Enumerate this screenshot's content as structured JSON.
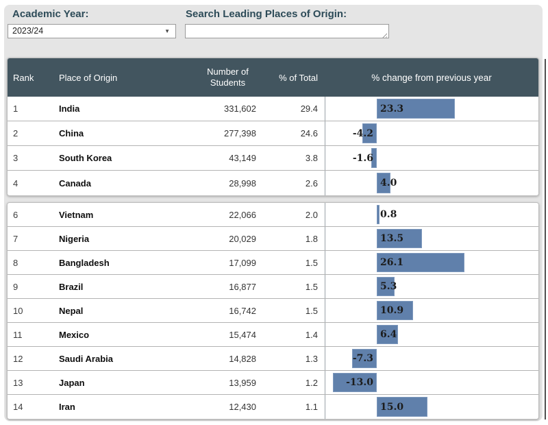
{
  "filters": {
    "academic_year_label": "Academic Year:",
    "academic_year_value": "2023/24",
    "search_label": "Search Leading Places of Origin:",
    "search_value": ""
  },
  "table": {
    "columns": {
      "rank": "Rank",
      "place": "Place of Origin",
      "students": "Number of Students",
      "pct_total": "% of Total",
      "pct_change": "% change from previous year"
    },
    "rows": [
      {
        "rank": "1",
        "place": "India",
        "students": "331,602",
        "pct_total": "29.4",
        "pct_change": 23.3,
        "pct_change_label": "23.3"
      },
      {
        "rank": "2",
        "place": "China",
        "students": "277,398",
        "pct_total": "24.6",
        "pct_change": -4.2,
        "pct_change_label": "-4.2"
      },
      {
        "rank": "3",
        "place": "South Korea",
        "students": "43,149",
        "pct_total": "3.8",
        "pct_change": -1.6,
        "pct_change_label": "-1.6"
      },
      {
        "rank": "4",
        "place": "Canada",
        "students": "28,998",
        "pct_total": "2.6",
        "pct_change": 4.0,
        "pct_change_label": "4.0"
      },
      {
        "rank": "6",
        "place": "Vietnam",
        "students": "22,066",
        "pct_total": "2.0",
        "pct_change": 0.8,
        "pct_change_label": "0.8"
      },
      {
        "rank": "7",
        "place": "Nigeria",
        "students": "20,029",
        "pct_total": "1.8",
        "pct_change": 13.5,
        "pct_change_label": "13.5"
      },
      {
        "rank": "8",
        "place": "Bangladesh",
        "students": "17,099",
        "pct_total": "1.5",
        "pct_change": 26.1,
        "pct_change_label": "26.1"
      },
      {
        "rank": "9",
        "place": "Brazil",
        "students": "16,877",
        "pct_total": "1.5",
        "pct_change": 5.3,
        "pct_change_label": "5.3"
      },
      {
        "rank": "10",
        "place": "Nepal",
        "students": "16,742",
        "pct_total": "1.5",
        "pct_change": 10.9,
        "pct_change_label": "10.9"
      },
      {
        "rank": "11",
        "place": "Mexico",
        "students": "15,474",
        "pct_total": "1.4",
        "pct_change": 6.4,
        "pct_change_label": "6.4"
      },
      {
        "rank": "12",
        "place": "Saudi Arabia",
        "students": "14,828",
        "pct_total": "1.3",
        "pct_change": -7.3,
        "pct_change_label": "-7.3"
      },
      {
        "rank": "13",
        "place": "Japan",
        "students": "13,959",
        "pct_total": "1.2",
        "pct_change": -13.0,
        "pct_change_label": "-13.0"
      },
      {
        "rank": "14",
        "place": "Iran",
        "students": "12,430",
        "pct_total": "1.1",
        "pct_change": 15.0,
        "pct_change_label": "15.0"
      }
    ]
  },
  "chart_data": {
    "type": "bar",
    "orientation": "horizontal",
    "title": "% change from previous year",
    "categories": [
      "India",
      "China",
      "South Korea",
      "Canada",
      "Vietnam",
      "Nigeria",
      "Bangladesh",
      "Brazil",
      "Nepal",
      "Mexico",
      "Saudi Arabia",
      "Japan",
      "Iran"
    ],
    "values": [
      23.3,
      -4.2,
      -1.6,
      4.0,
      0.8,
      13.5,
      26.1,
      5.3,
      10.9,
      6.4,
      -7.3,
      -13.0,
      15.0
    ],
    "xlim": [
      -15.5,
      48.5
    ],
    "grid": false,
    "legend": false,
    "value_labels": true,
    "bar_color": "#6080ab"
  },
  "colors": {
    "header_bg": "#42555f",
    "panel_bg": "#e5e5e5",
    "bar": "#6080ab",
    "filter_label_text": "#2d4b58"
  }
}
